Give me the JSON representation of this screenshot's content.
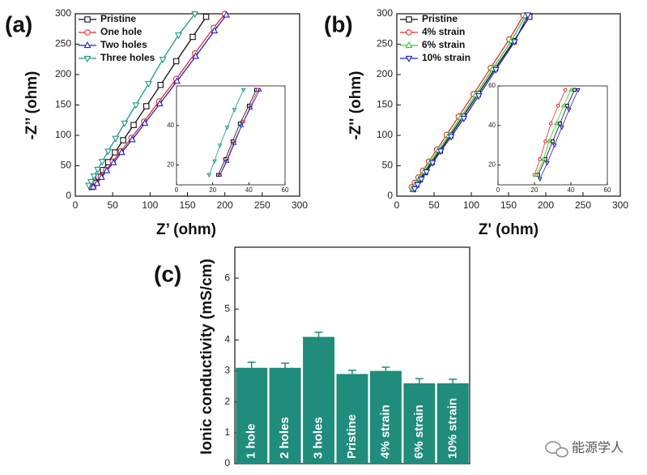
{
  "chart_data": [
    {
      "type": "line",
      "label": "(a)",
      "xlabel": "Z’ (ohm)",
      "ylabel": "-Z’’ (ohm)",
      "xlim": [
        0,
        300
      ],
      "xticks": [
        0,
        50,
        100,
        150,
        200,
        250,
        300
      ],
      "ylim": [
        0,
        300
      ],
      "yticks": [
        0,
        50,
        100,
        150,
        200,
        250,
        300
      ],
      "legend": "upper left",
      "series": [
        {
          "name": "Pristine",
          "color": "#111111",
          "marker": "square",
          "x": [
            22,
            26,
            31,
            37,
            44,
            53,
            64,
            78,
            95,
            114,
            135,
            157,
            175
          ],
          "values": [
            15,
            22,
            32,
            43,
            56,
            72,
            92,
            117,
            148,
            183,
            222,
            262,
            295
          ]
        },
        {
          "name": "One hole",
          "color": "#e0302f",
          "marker": "circle",
          "x": [
            24,
            28,
            34,
            41,
            50,
            61,
            75,
            92,
            112,
            135,
            160,
            185,
            200
          ],
          "values": [
            15,
            22,
            32,
            43,
            57,
            74,
            96,
            123,
            156,
            193,
            235,
            277,
            300
          ]
        },
        {
          "name": "Two holes",
          "color": "#2323c8",
          "marker": "triangle-up",
          "x": [
            24,
            29,
            35,
            42,
            51,
            62,
            76,
            93,
            113,
            136,
            161,
            186,
            202
          ],
          "values": [
            15,
            21,
            31,
            42,
            55,
            72,
            93,
            120,
            152,
            189,
            230,
            272,
            298
          ]
        },
        {
          "name": "Three holes",
          "color": "#1a9a80",
          "marker": "triangle-down",
          "x": [
            18,
            21,
            25,
            30,
            36,
            44,
            54,
            66,
            81,
            98,
            117,
            138,
            160
          ],
          "values": [
            18,
            24,
            33,
            44,
            57,
            74,
            95,
            120,
            150,
            185,
            225,
            265,
            300
          ]
        }
      ]
    },
    {
      "type": "line",
      "label": "(b)",
      "xlabel": "Z' (ohm)",
      "ylabel": "-Z'' (ohm)",
      "xlim": [
        0,
        300
      ],
      "xticks": [
        0,
        50,
        100,
        150,
        200,
        250,
        300
      ],
      "ylim": [
        0,
        300
      ],
      "yticks": [
        0,
        50,
        100,
        150,
        200,
        250,
        300
      ],
      "legend": "upper left",
      "series": [
        {
          "name": "Pristine",
          "color": "#111111",
          "marker": "square",
          "x": [
            22,
            26,
            31,
            38,
            47,
            58,
            72,
            89,
            109,
            132,
            157,
            178
          ],
          "values": [
            12,
            19,
            28,
            40,
            56,
            75,
            100,
            131,
            168,
            210,
            255,
            295
          ]
        },
        {
          "name": "4% strain",
          "color": "#e0302f",
          "marker": "circle",
          "x": [
            20,
            24,
            29,
            35,
            43,
            54,
            67,
            83,
            103,
            126,
            151,
            170
          ],
          "values": [
            15,
            22,
            31,
            42,
            57,
            77,
            101,
            131,
            168,
            211,
            258,
            297
          ]
        },
        {
          "name": "6% strain",
          "color": "#33cc33",
          "marker": "triangle-up",
          "x": [
            22,
            26,
            31,
            37,
            46,
            56,
            70,
            86,
            106,
            129,
            154,
            173
          ],
          "values": [
            14,
            21,
            30,
            41,
            57,
            76,
            100,
            130,
            167,
            210,
            256,
            297
          ]
        },
        {
          "name": "10% strain",
          "color": "#2323c8",
          "marker": "triangle-down",
          "x": [
            24,
            28,
            33,
            40,
            48,
            59,
            73,
            90,
            110,
            133,
            158,
            176
          ],
          "values": [
            12,
            19,
            28,
            40,
            55,
            74,
            98,
            128,
            165,
            208,
            254,
            298
          ]
        }
      ]
    },
    {
      "type": "line",
      "xlim": [
        0,
        60
      ],
      "xticks": [
        0,
        20,
        40,
        60
      ],
      "ylim": [
        10,
        60
      ],
      "yticks": [
        20,
        40
      ],
      "series": [
        {
          "color": "#111111",
          "marker": "square",
          "x": [
            23,
            27,
            31,
            35,
            40,
            44
          ],
          "values": [
            15,
            23,
            32,
            41,
            50,
            58
          ]
        },
        {
          "color": "#e0302f",
          "marker": "circle",
          "x": [
            24,
            28,
            32,
            37,
            41,
            45
          ],
          "values": [
            15,
            23,
            32,
            42,
            50,
            58
          ]
        },
        {
          "color": "#2323c8",
          "marker": "triangle-up",
          "x": [
            24,
            28,
            32,
            36,
            41,
            46
          ],
          "values": [
            15,
            22,
            31,
            40,
            49,
            58
          ]
        },
        {
          "color": "#1a9a80",
          "marker": "triangle-down",
          "x": [
            18,
            21,
            24,
            28,
            32,
            37
          ],
          "values": [
            15,
            22,
            30,
            39,
            48,
            58
          ]
        }
      ]
    },
    {
      "type": "line",
      "xlim": [
        0,
        60
      ],
      "xticks": [
        0,
        20,
        40,
        60
      ],
      "ylim": [
        10,
        60
      ],
      "yticks": [
        20,
        40,
        60
      ],
      "series": [
        {
          "color": "#111111",
          "marker": "square",
          "x": [
            22,
            26,
            30,
            34,
            38,
            42
          ],
          "values": [
            15,
            23,
            32,
            41,
            50,
            58
          ]
        },
        {
          "color": "#e0302f",
          "marker": "circle",
          "x": [
            20,
            23,
            26,
            29,
            33,
            37
          ],
          "values": [
            15,
            23,
            32,
            41,
            50,
            58
          ]
        },
        {
          "color": "#33cc33",
          "marker": "triangle-up",
          "x": [
            21,
            25,
            28,
            32,
            36,
            40
          ],
          "values": [
            15,
            23,
            32,
            41,
            50,
            58
          ]
        },
        {
          "color": "#2323c8",
          "marker": "triangle-down",
          "x": [
            23,
            27,
            31,
            35,
            39,
            44
          ],
          "values": [
            13,
            21,
            30,
            39,
            48,
            58
          ]
        }
      ]
    },
    {
      "type": "bar",
      "label": "(c)",
      "ylabel": "Ionic conductivity (mS/cm)",
      "categories": [
        "1 hole",
        "2 holes",
        "3 holes",
        "Pristine",
        "4% strain",
        "6% strain",
        "10% strain"
      ],
      "values": [
        3.1,
        3.1,
        4.1,
        2.9,
        3.0,
        2.6,
        2.6
      ],
      "errors": [
        0.18,
        0.15,
        0.15,
        0.12,
        0.12,
        0.15,
        0.13
      ],
      "color": "#1f8c7c",
      "ylim": [
        0,
        7
      ],
      "yticks": [
        0,
        1,
        2,
        3,
        4,
        5,
        6
      ]
    }
  ],
  "watermark": "能源学人"
}
